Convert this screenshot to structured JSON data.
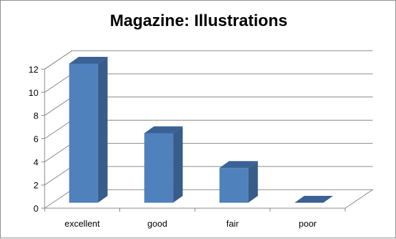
{
  "chart_data": {
    "type": "bar",
    "title": "Magazine: Illustrations",
    "categories": [
      "excellent",
      "good",
      "fair",
      "poor"
    ],
    "values": [
      12,
      6,
      3,
      0
    ],
    "ylim": [
      0,
      12
    ],
    "yticks": [
      "0",
      "2",
      "4",
      "6",
      "8",
      "10",
      "12"
    ],
    "xlabel": "",
    "ylabel": "",
    "grid": true,
    "legend": "none",
    "style": "3d-column",
    "colors": {
      "bar_front": "#4f81bd",
      "bar_side": "#385d8a",
      "bar_top": "#3a6294",
      "grid": "#868686"
    }
  }
}
